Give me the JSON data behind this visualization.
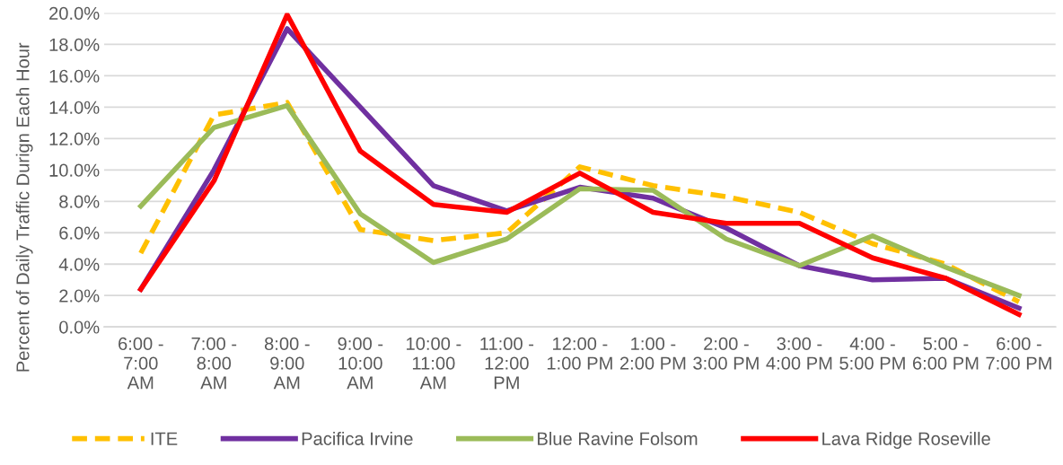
{
  "chart_data": {
    "type": "line",
    "ylabel": "Percent of Daily Traffic Durign Each Hour",
    "categories": [
      "6:00 -\n7:00\nAM",
      "7:00 -\n8:00\nAM",
      "8:00 -\n9:00\nAM",
      "9:00 -\n10:00\nAM",
      "10:00 -\n11:00\nAM",
      "11:00 -\n12:00\nPM",
      "12:00 -\n1:00 PM",
      "1:00 -\n2:00 PM",
      "2:00 -\n3:00 PM",
      "3:00 -\n4:00 PM",
      "4:00 -\n5:00 PM",
      "5:00 -\n6:00 PM",
      "6:00 -\n7:00 PM"
    ],
    "series": [
      {
        "name": "ITE",
        "color": "#ffc000",
        "line_style": "dashed",
        "values": [
          4.7,
          13.5,
          14.3,
          6.2,
          5.5,
          6.0,
          10.2,
          9.0,
          8.3,
          7.3,
          5.3,
          4.0,
          1.6
        ]
      },
      {
        "name": "Pacifica Irvine",
        "color": "#7030a0",
        "line_style": "solid",
        "values": [
          2.4,
          10.0,
          19.0,
          14.0,
          9.0,
          7.4,
          8.9,
          8.2,
          6.3,
          3.9,
          3.0,
          3.1,
          1.2
        ]
      },
      {
        "name": "Blue Ravine Folsom",
        "color": "#9bbb59",
        "line_style": "solid",
        "values": [
          7.7,
          12.7,
          14.1,
          7.2,
          4.1,
          5.6,
          8.8,
          8.7,
          5.6,
          3.9,
          5.8,
          3.8,
          2.0
        ]
      },
      {
        "name": "Lava Ridge Roseville",
        "color": "#ff0000",
        "line_style": "solid",
        "values": [
          2.4,
          9.3,
          19.9,
          11.2,
          7.8,
          7.3,
          9.8,
          7.3,
          6.6,
          6.6,
          4.4,
          3.1,
          0.8
        ]
      }
    ],
    "ylim": [
      0,
      20
    ],
    "yticks": [
      {
        "value": 0,
        "label": "0.0%"
      },
      {
        "value": 2,
        "label": "2.0%"
      },
      {
        "value": 4,
        "label": "4.0%"
      },
      {
        "value": 6,
        "label": "6.0%"
      },
      {
        "value": 8,
        "label": "8.0%"
      },
      {
        "value": 10,
        "label": "10.0%"
      },
      {
        "value": 12,
        "label": "12.0%"
      },
      {
        "value": 14,
        "label": "14.0%"
      },
      {
        "value": 16,
        "label": "16.0%"
      },
      {
        "value": 18,
        "label": "18.0%"
      },
      {
        "value": 20,
        "label": "20.0%"
      }
    ],
    "grid": "y",
    "legend": "bottom",
    "marker": "none"
  }
}
